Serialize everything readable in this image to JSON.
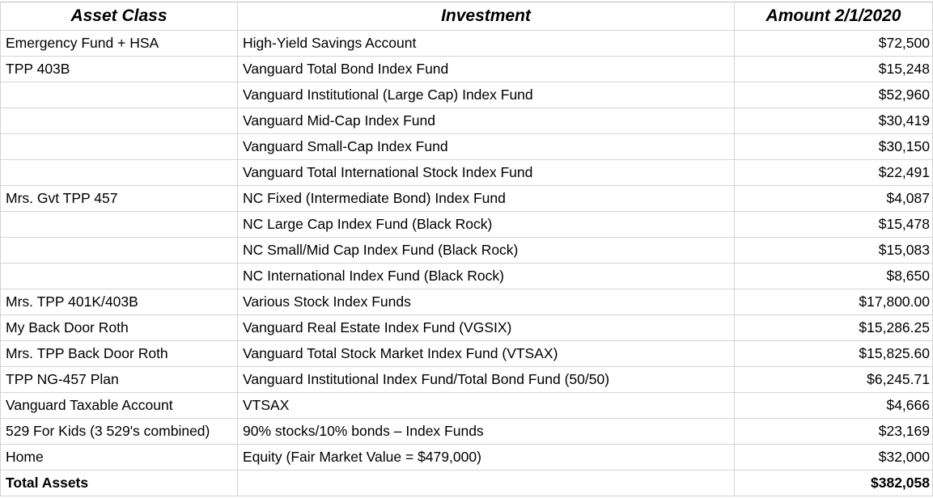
{
  "table": {
    "headers": [
      "Asset Class",
      "Investment",
      "Amount 2/1/2020"
    ],
    "rows": [
      {
        "asset_class": "Emergency Fund + HSA",
        "investment": "High-Yield Savings Account",
        "amount": "$72,500"
      },
      {
        "asset_class": "TPP 403B",
        "investment": "Vanguard Total Bond Index Fund",
        "amount": "$15,248"
      },
      {
        "asset_class": "",
        "investment": "Vanguard Institutional (Large Cap) Index Fund",
        "amount": "$52,960"
      },
      {
        "asset_class": "",
        "investment": "Vanguard Mid-Cap Index Fund",
        "amount": "$30,419"
      },
      {
        "asset_class": "",
        "investment": "Vanguard Small-Cap Index Fund",
        "amount": "$30,150"
      },
      {
        "asset_class": "",
        "investment": "Vanguard Total International Stock Index Fund",
        "amount": "$22,491"
      },
      {
        "asset_class": "Mrs. Gvt TPP 457",
        "investment": "NC Fixed (Intermediate Bond) Index Fund",
        "amount": "$4,087"
      },
      {
        "asset_class": "",
        "investment": "NC Large Cap Index Fund (Black Rock)",
        "amount": "$15,478"
      },
      {
        "asset_class": "",
        "investment": "NC Small/Mid Cap Index Fund (Black Rock)",
        "amount": "$15,083"
      },
      {
        "asset_class": "",
        "investment": "NC International Index Fund (Black Rock)",
        "amount": "$8,650"
      },
      {
        "asset_class": "Mrs. TPP 401K/403B",
        "investment": "Various Stock Index Funds",
        "amount": "$17,800.00"
      },
      {
        "asset_class": "My Back Door Roth",
        "investment": "Vanguard Real Estate Index Fund (VGSIX)",
        "amount": "$15,286.25"
      },
      {
        "asset_class": "Mrs. TPP Back Door Roth",
        "investment": "Vanguard Total Stock Market Index Fund (VTSAX)",
        "amount": "$15,825.60"
      },
      {
        "asset_class": "TPP NG-457 Plan",
        "investment": "Vanguard Institutional Index Fund/Total Bond Fund (50/50)",
        "amount": "$6,245.71"
      },
      {
        "asset_class": "Vanguard Taxable Account",
        "investment": "VTSAX",
        "amount": "$4,666"
      },
      {
        "asset_class": "529 For Kids (3 529's combined)",
        "investment": "90% stocks/10% bonds – Index Funds",
        "amount": "$23,169"
      },
      {
        "asset_class": "Home",
        "investment": "Equity (Fair Market Value = $479,000)",
        "amount": "$32,000"
      }
    ],
    "total": {
      "label": "Total Assets",
      "investment": "",
      "amount": "$382,058"
    }
  }
}
